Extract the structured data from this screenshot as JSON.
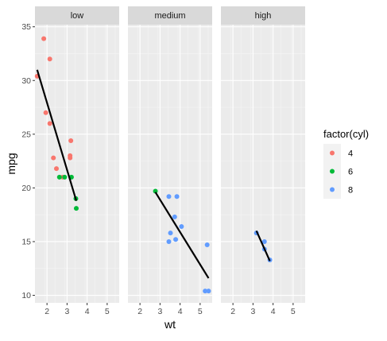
{
  "chart_data": {
    "type": "scatter",
    "xlabel": "wt",
    "ylabel": "mpg",
    "xlim": [
      1.4,
      5.6
    ],
    "ylim": [
      9.3,
      35.2
    ],
    "x_ticks": [
      2,
      3,
      4,
      5
    ],
    "y_ticks": [
      10,
      15,
      20,
      25,
      30,
      35
    ],
    "grid": true,
    "legend": {
      "title": "factor(cyl)",
      "position": "right",
      "entries": [
        {
          "label": "4",
          "color": "#F8766D"
        },
        {
          "label": "6",
          "color": "#00BA38"
        },
        {
          "label": "8",
          "color": "#619CFF"
        }
      ]
    },
    "facets": [
      {
        "label": "low",
        "points": [
          {
            "x": 1.51,
            "y": 30.4,
            "cyl": "4"
          },
          {
            "x": 1.84,
            "y": 33.9,
            "cyl": "4"
          },
          {
            "x": 2.14,
            "y": 32.0,
            "cyl": "4"
          },
          {
            "x": 1.94,
            "y": 27.0,
            "cyl": "4"
          },
          {
            "x": 2.14,
            "y": 26.0,
            "cyl": "4"
          },
          {
            "x": 2.32,
            "y": 22.8,
            "cyl": "4"
          },
          {
            "x": 2.47,
            "y": 21.8,
            "cyl": "4"
          },
          {
            "x": 2.78,
            "y": 21.0,
            "cyl": "4"
          },
          {
            "x": 3.15,
            "y": 22.8,
            "cyl": "4"
          },
          {
            "x": 3.19,
            "y": 24.4,
            "cyl": "4"
          },
          {
            "x": 3.15,
            "y": 23.0,
            "cyl": "4"
          },
          {
            "x": 2.62,
            "y": 21.0,
            "cyl": "6"
          },
          {
            "x": 2.88,
            "y": 21.0,
            "cyl": "6"
          },
          {
            "x": 3.22,
            "y": 21.0,
            "cyl": "6"
          },
          {
            "x": 3.44,
            "y": 19.0,
            "cyl": "6"
          },
          {
            "x": 3.46,
            "y": 18.1,
            "cyl": "6"
          }
        ],
        "fit": {
          "x": [
            1.51,
            3.46
          ],
          "y": [
            31.0,
            18.8
          ]
        }
      },
      {
        "label": "medium",
        "points": [
          {
            "x": 2.77,
            "y": 19.7,
            "cyl": "6"
          },
          {
            "x": 3.44,
            "y": 19.2,
            "cyl": "8"
          },
          {
            "x": 3.84,
            "y": 19.2,
            "cyl": "8"
          },
          {
            "x": 3.73,
            "y": 17.3,
            "cyl": "8"
          },
          {
            "x": 3.52,
            "y": 15.8,
            "cyl": "8"
          },
          {
            "x": 4.07,
            "y": 16.4,
            "cyl": "8"
          },
          {
            "x": 3.44,
            "y": 15.0,
            "cyl": "8"
          },
          {
            "x": 3.78,
            "y": 15.2,
            "cyl": "8"
          },
          {
            "x": 5.25,
            "y": 10.4,
            "cyl": "8"
          },
          {
            "x": 5.42,
            "y": 10.4,
            "cyl": "8"
          },
          {
            "x": 5.35,
            "y": 14.7,
            "cyl": "8"
          }
        ],
        "fit": {
          "x": [
            2.77,
            5.42
          ],
          "y": [
            19.6,
            11.6
          ]
        }
      },
      {
        "label": "high",
        "points": [
          {
            "x": 3.17,
            "y": 15.8,
            "cyl": "8"
          },
          {
            "x": 3.57,
            "y": 14.3,
            "cyl": "8"
          },
          {
            "x": 3.57,
            "y": 15.0,
            "cyl": "8"
          },
          {
            "x": 3.84,
            "y": 13.3,
            "cyl": "8"
          }
        ],
        "fit": {
          "x": [
            3.17,
            3.84
          ],
          "y": [
            16.0,
            13.2
          ]
        }
      }
    ]
  }
}
